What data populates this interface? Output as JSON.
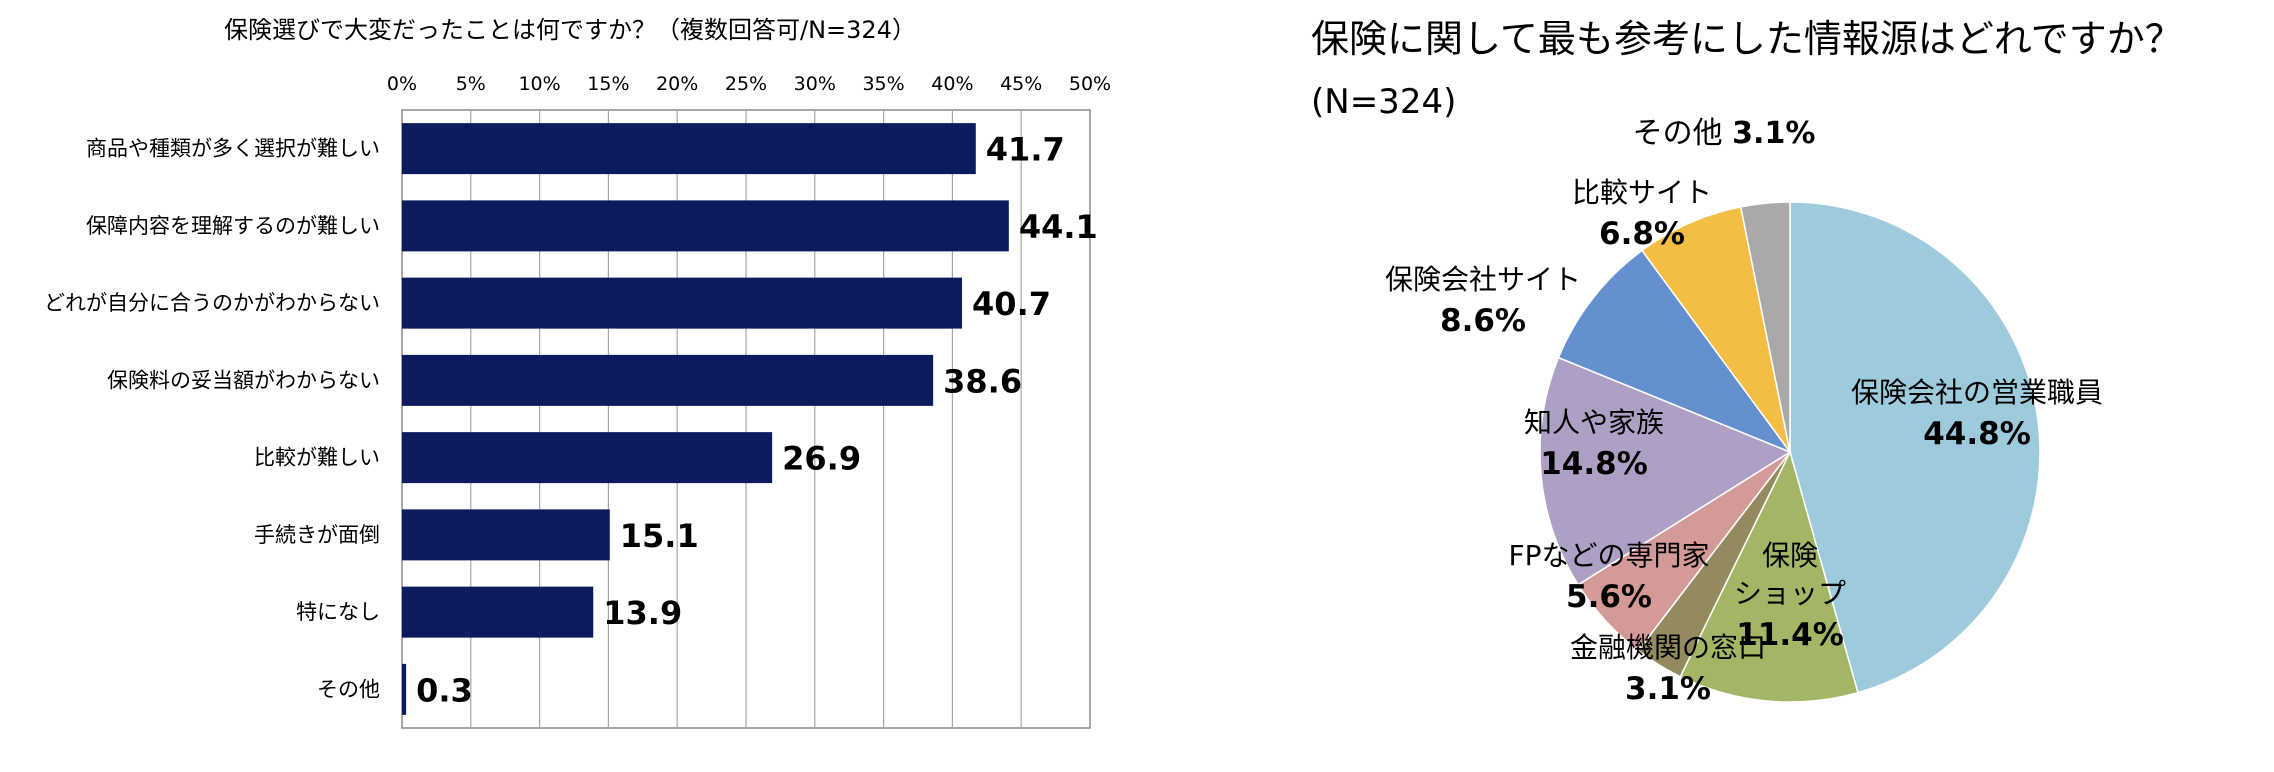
{
  "chart_data": [
    {
      "type": "bar",
      "orientation": "horizontal",
      "title": "保険選びで大変だったことは何ですか？（複数回答可/N=324）",
      "xlabel": "",
      "ylabel": "",
      "xlim": [
        0,
        50
      ],
      "ticks": [
        "0%",
        "5%",
        "10%",
        "15%",
        "20%",
        "25%",
        "30%",
        "35%",
        "40%",
        "45%",
        "50%"
      ],
      "grid": true,
      "bar_color": "#0c1a5e",
      "categories": [
        "商品や種類が多く選択が難しい",
        "保障内容を理解するのが難しい",
        "どれが自分に合うのかがわからない",
        "保険料の妥当額がわからない",
        "比較が難しい",
        "手続きが面倒",
        "特になし",
        "その他"
      ],
      "values": [
        41.7,
        44.1,
        40.7,
        38.6,
        26.9,
        15.1,
        13.9,
        0.3
      ],
      "value_labels": [
        "41.7",
        "44.1",
        "40.7",
        "38.6",
        "26.9",
        "15.1",
        "13.9",
        "0.3"
      ]
    },
    {
      "type": "pie",
      "title": "保険に関して最も参考にした情報源はどれですか？",
      "subtitle": "(N=324)",
      "slices": [
        {
          "name": "保険会社の営業職員",
          "lines": [
            "保険会社の営業職員"
          ],
          "value": 44.8,
          "label": "44.8%",
          "color": "#9ecbdc"
        },
        {
          "name": "保険ショップ",
          "lines": [
            "保険",
            "ショップ"
          ],
          "value": 11.4,
          "label": "11.4%",
          "color": "#a3b665"
        },
        {
          "name": "金融機関の窓口",
          "lines": [
            "金融機関の窓口"
          ],
          "value": 3.1,
          "label": "3.1%",
          "color": "#938b5f"
        },
        {
          "name": "FPなどの専門家",
          "lines": [
            "FPなどの専門家"
          ],
          "value": 5.6,
          "label": "5.6%",
          "color": "#d49a97"
        },
        {
          "name": "知人や家族",
          "lines": [
            "知人や家族"
          ],
          "value": 14.8,
          "label": "14.8%",
          "color": "#ae9fc4"
        },
        {
          "name": "保険会社サイト",
          "lines": [
            "保険会社サイト"
          ],
          "value": 8.6,
          "label": "8.6%",
          "color": "#6590cf"
        },
        {
          "name": "比較サイト",
          "lines": [
            "比較サイト"
          ],
          "value": 6.8,
          "label": "6.8%",
          "color": "#f4be44"
        },
        {
          "name": "その他",
          "lines": [
            "その他"
          ],
          "value": 3.1,
          "label": "3.1%",
          "color": "#a9a9a9"
        }
      ]
    }
  ]
}
